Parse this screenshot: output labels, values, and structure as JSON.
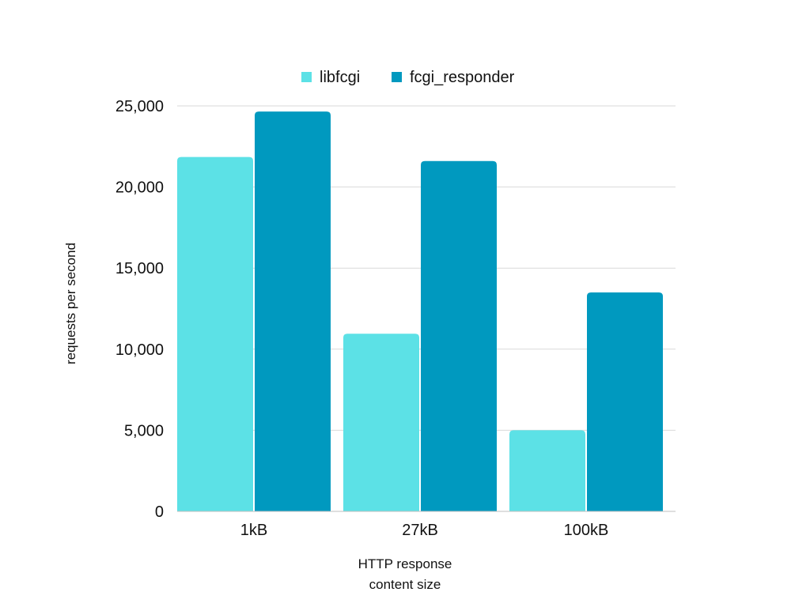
{
  "chart_data": {
    "type": "bar",
    "title": "",
    "xlabel_lines": [
      "HTTP response",
      "content size"
    ],
    "ylabel": "requests per second",
    "categories": [
      "1kB",
      "27kB",
      "100kB"
    ],
    "series": [
      {
        "name": "libfcgi",
        "color": "#5ce1e6",
        "values": [
          21850,
          10950,
          5000
        ]
      },
      {
        "name": "fcgi_responder",
        "color": "#0099bf",
        "values": [
          24650,
          21600,
          13500
        ]
      }
    ],
    "ylim": [
      0,
      25000
    ],
    "yticks": [
      0,
      5000,
      10000,
      15000,
      20000,
      25000
    ],
    "ytick_labels": [
      "0",
      "5,000",
      "10,000",
      "15,000",
      "20,000",
      "25,000"
    ],
    "grid": true,
    "legend_position": "top-center"
  }
}
